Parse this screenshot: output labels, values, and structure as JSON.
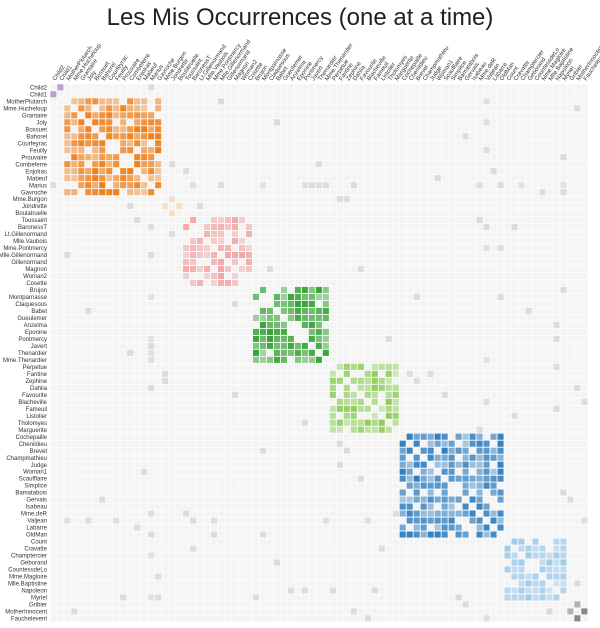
{
  "title": "Les Mis Occurrences (one at a time)",
  "chart_data": {
    "type": "heatmap",
    "title": "Les Mis Occurrences (one at a time)",
    "labels": [
      "Child2",
      "Child1",
      "MotherPlutarch",
      "Mme.Hucheloup",
      "Grantaire",
      "Joly",
      "Bossuet",
      "Bahorel",
      "Courfeyrac",
      "Feuilly",
      "Prouvaire",
      "Combeferre",
      "Enjolras",
      "Mabeuf",
      "Marius",
      "Gavroche",
      "Mme.Burgon",
      "Jondrette",
      "Boulatruelle",
      "Toussaint",
      "BaronessT",
      "Lt.Gillenormand",
      "Mlle.Vaubois",
      "Mme.Pontmercy",
      "Mlle.Gillenormand",
      "Gillenormand",
      "Magnon",
      "Woman2",
      "Cosette",
      "Brujon",
      "Montparnasse",
      "Claquesous",
      "Babet",
      "Gueulemer",
      "Anzelma",
      "Eponine",
      "Pontmercy",
      "Javert",
      "Thenardier",
      "Mme.Thenardier",
      "Perpetue",
      "Fantine",
      "Zephine",
      "Dahlia",
      "Favourite",
      "Blacheville",
      "Fameuil",
      "Listolier",
      "Tholomyes",
      "Marguerite",
      "Cochepaille",
      "Chenildieu",
      "Brevet",
      "Champmathieu",
      "Judge",
      "Woman1",
      "Scaufflaire",
      "Simplice",
      "Bamatabois",
      "Gervais",
      "Isabeau",
      "Mme.deR",
      "Valjean",
      "Labarre",
      "OldMan",
      "Count",
      "Cravatte",
      "Champtercier",
      "Geborand",
      "CountessdeLo",
      "Mme.Magloire",
      "Mlle.Baptistine",
      "Napoleon",
      "Myriel",
      "Gribier",
      "MotherInnocent",
      "Fauchelevent"
    ],
    "groups": [
      {
        "range": [
          0,
          1
        ],
        "color": "#8e5cb5"
      },
      {
        "range": [
          2,
          15
        ],
        "color": "#ef7f1a"
      },
      {
        "range": [
          16,
          18
        ],
        "color": "#f6c48c"
      },
      {
        "range": [
          19,
          28
        ],
        "color": "#f2a8a8"
      },
      {
        "range": [
          29,
          39
        ],
        "color": "#2ca02c"
      },
      {
        "range": [
          40,
          49
        ],
        "color": "#8fce5a"
      },
      {
        "range": [
          50,
          64
        ],
        "color": "#2f7fc1"
      },
      {
        "range": [
          65,
          73
        ],
        "color": "#9fcbea"
      },
      {
        "range": [
          74,
          76
        ],
        "color": "#555555"
      }
    ],
    "background_color": "#f4f4f4",
    "out_group_color": "#d0d0d0",
    "grid": true,
    "legend": "none"
  }
}
